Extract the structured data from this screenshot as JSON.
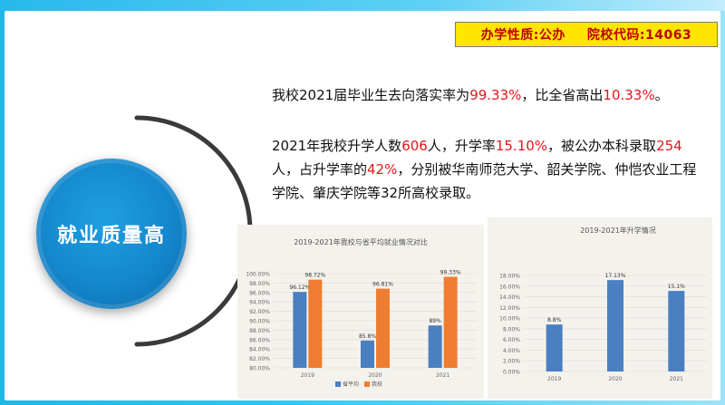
{
  "info": {
    "nature": "办学性质:公办",
    "code": "院校代码:14063"
  },
  "badge": "就业质量高",
  "paragraph1": {
    "t1": "我校2021届毕业生去向落实率为",
    "r1": "99.33%",
    "t2": "，比全省高出",
    "r2": "10.33%",
    "t3": "。"
  },
  "paragraph2": {
    "t1": "2021年我校升学人数",
    "r1": "606",
    "t2": "人，升学率",
    "r2": "15.10%",
    "t3": "，被公办本科录取",
    "r3": "254",
    "t4": "人，占升学率的",
    "r4": "42%",
    "t5": "，分别被华南师范大学、韶关学院、仲恺农业工程学院、肇庆学院等32所高校录取。"
  },
  "chart_data": [
    {
      "type": "bar",
      "title": "2019-2021年我校与省平均就业情况对比",
      "categories": [
        "2019",
        "2020",
        "2021"
      ],
      "series": [
        {
          "name": "省平均",
          "values": [
            96.12,
            85.8,
            89
          ],
          "labels": [
            "96.12%",
            "85.8%",
            "89%"
          ],
          "color": "#4a7fc1"
        },
        {
          "name": "我校",
          "values": [
            98.72,
            96.81,
            99.33
          ],
          "labels": [
            "98.72%",
            "96.81%",
            "99.33%"
          ],
          "color": "#ee7d31"
        }
      ],
      "ylim": [
        80,
        100
      ],
      "yticks": [
        "80.00%",
        "82.00%",
        "84.00%",
        "86.00%",
        "88.00%",
        "90.00%",
        "92.00%",
        "94.00%",
        "96.00%",
        "98.00%",
        "100.00%"
      ],
      "grid": true,
      "legend": "bottom"
    },
    {
      "type": "bar",
      "title": "2019-2021年升学情况",
      "categories": [
        "2019",
        "2020",
        "2021"
      ],
      "series": [
        {
          "values": [
            8.8,
            17.13,
            15.1
          ],
          "labels": [
            "8.8%",
            "17.13%",
            "15.1%"
          ],
          "color": "#4a7fc1"
        }
      ],
      "ylim": [
        0,
        18
      ],
      "yticks": [
        "0.00%",
        "2.00%",
        "4.00%",
        "6.00%",
        "8.00%",
        "10.00%",
        "12.00%",
        "14.00%",
        "16.00%",
        "18.00%"
      ],
      "grid": true
    }
  ]
}
